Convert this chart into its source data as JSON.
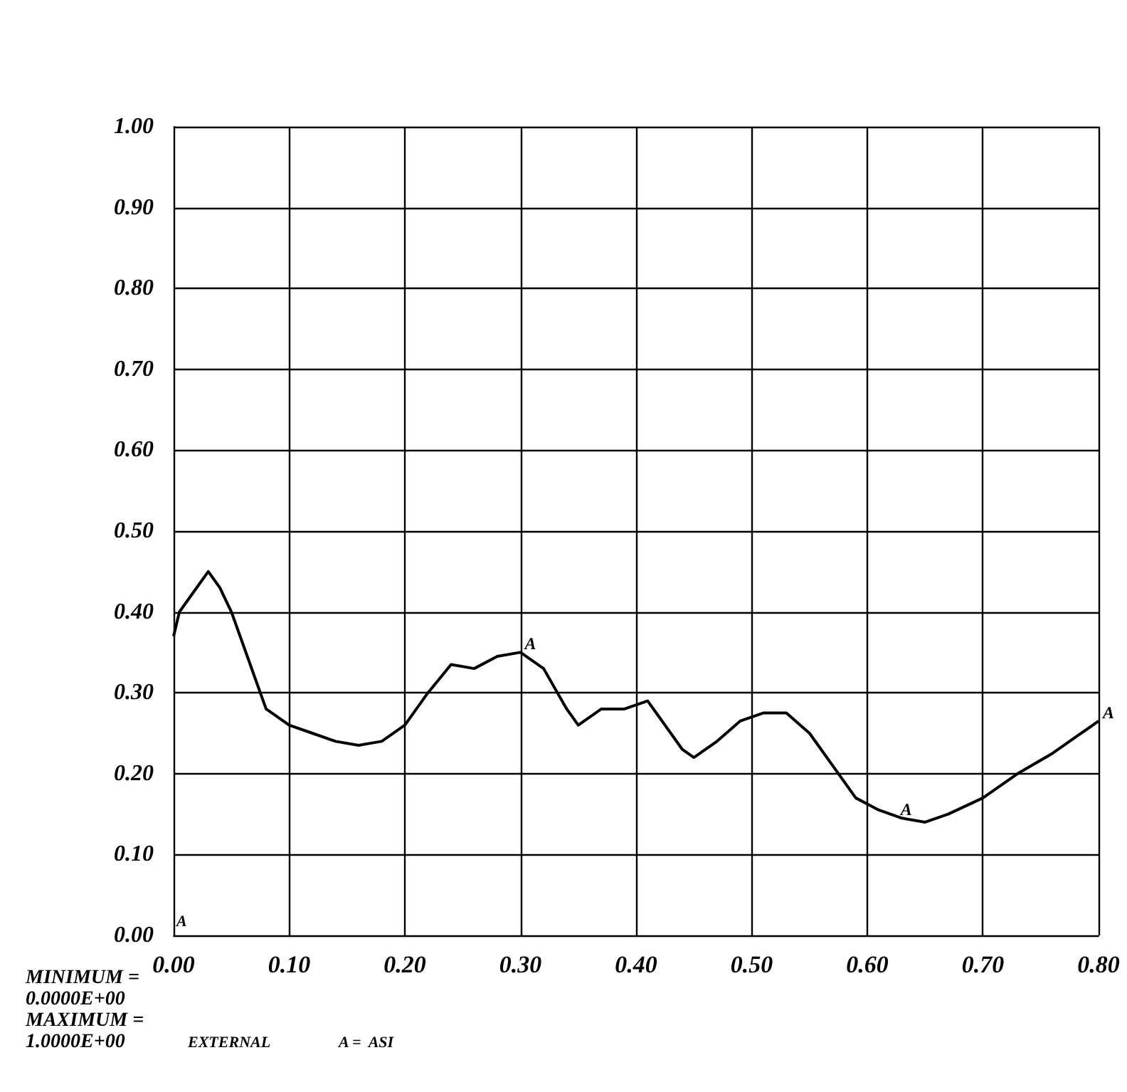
{
  "chart_data": {
    "type": "line",
    "x": [
      0,
      0.005,
      0.02,
      0.03,
      0.04,
      0.05,
      0.06,
      0.07,
      0.08,
      0.1,
      0.12,
      0.14,
      0.16,
      0.18,
      0.2,
      0.22,
      0.24,
      0.26,
      0.28,
      0.3,
      0.32,
      0.34,
      0.35,
      0.37,
      0.39,
      0.41,
      0.42,
      0.44,
      0.45,
      0.47,
      0.49,
      0.51,
      0.53,
      0.55,
      0.57,
      0.59,
      0.61,
      0.63,
      0.65,
      0.67,
      0.7,
      0.73,
      0.76,
      0.78,
      0.8
    ],
    "series": [
      {
        "color": "#000000",
        "values": [
          0.37,
          0.4,
          0.43,
          0.45,
          0.43,
          0.4,
          0.36,
          0.32,
          0.28,
          0.26,
          0.25,
          0.24,
          0.235,
          0.24,
          0.26,
          0.3,
          0.335,
          0.33,
          0.345,
          0.35,
          0.33,
          0.28,
          0.26,
          0.28,
          0.28,
          0.29,
          0.27,
          0.23,
          0.22,
          0.24,
          0.265,
          0.275,
          0.275,
          0.25,
          0.21,
          0.17,
          0.155,
          0.145,
          0.14,
          0.15,
          0.17,
          0.2,
          0.225,
          0.245,
          0.265
        ]
      }
    ],
    "xlim": [
      0,
      0.8
    ],
    "xticks": [
      {
        "value": 0,
        "label": "0.00"
      },
      {
        "value": 0.1,
        "label": "0.10"
      },
      {
        "value": 0.2,
        "label": "0.20"
      },
      {
        "value": 0.3,
        "label": "0.30"
      },
      {
        "value": 0.4,
        "label": "0.40"
      },
      {
        "value": 0.5,
        "label": "0.50"
      },
      {
        "value": 0.6,
        "label": "0.60"
      },
      {
        "value": 0.7,
        "label": "0.70"
      },
      {
        "value": 0.8,
        "label": "0.80"
      }
    ],
    "ylim": [
      0,
      1
    ],
    "yticks": [
      {
        "value": 0,
        "label": "0.00"
      },
      {
        "value": 0.1,
        "label": "0.10"
      },
      {
        "value": 0.2,
        "label": "0.20"
      },
      {
        "value": 0.3,
        "label": "0.30"
      },
      {
        "value": 0.4,
        "label": "0.40"
      },
      {
        "value": 0.5,
        "label": "0.50"
      },
      {
        "value": 0.6,
        "label": "0.60"
      },
      {
        "value": 0.7,
        "label": "0.70"
      },
      {
        "value": 0.8,
        "label": "0.80"
      },
      {
        "value": 0.9,
        "label": "0.90"
      },
      {
        "value": 1,
        "label": "1.00"
      }
    ],
    "grid": true,
    "annotations": [
      "A",
      {
        "text": "A",
        "x": 0.3,
        "y": 0.35
      },
      {
        "text": "A",
        "x": 0.625,
        "y": 0.145
      },
      {
        "text": "A",
        "x": 0.8,
        "y": 0.265
      },
      "MINIMUM =",
      "0.0000E+00",
      "MAXIMUM =",
      "1.0000E+00",
      "EXTERNAL",
      "A =  ASI"
    ]
  }
}
